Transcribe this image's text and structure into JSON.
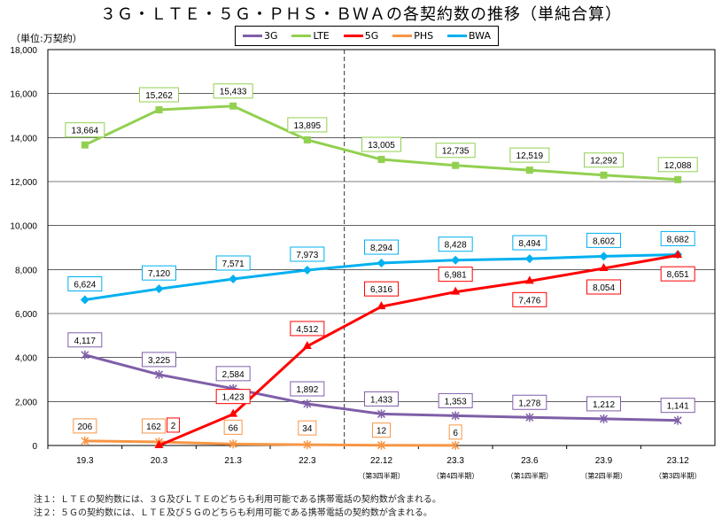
{
  "chart_data": {
    "type": "line",
    "title": "３Ｇ・ＬＴＥ・５Ｇ・ＰＨＳ・ＢＷＡの各契約数の推移（単純合算）",
    "unit_label": "（単位:万契約）",
    "categories": [
      "19.3",
      "20.3",
      "21.3",
      "22.3",
      "22.12",
      "23.3",
      "23.6",
      "23.9",
      "23.12"
    ],
    "sublabels": [
      "",
      "",
      "",
      "",
      "（第3四半期）",
      "（第4四半期）",
      "（第1四半期）",
      "（第2四半期）",
      "（第3四半期）"
    ],
    "ylim": [
      0,
      18000
    ],
    "yticks": [
      "0",
      "2,000",
      "4,000",
      "6,000",
      "8,000",
      "10,000",
      "12,000",
      "14,000",
      "16,000",
      "18,000"
    ],
    "series": [
      {
        "name": "3G",
        "color": "#7F5FA8",
        "values": [
          4117,
          3225,
          2584,
          1892,
          1433,
          1353,
          1278,
          1212,
          1141
        ],
        "labels": [
          "4,117",
          "3,225",
          "2,584",
          "1,892",
          "1,433",
          "1,353",
          "1,278",
          "1,212",
          "1,141"
        ]
      },
      {
        "name": "LTE",
        "color": "#92D050",
        "values": [
          13664,
          15262,
          15433,
          13895,
          13005,
          12735,
          12519,
          12292,
          12088
        ],
        "labels": [
          "13,664",
          "15,262",
          "15,433",
          "13,895",
          "13,005",
          "12,735",
          "12,519",
          "12,292",
          "12,088"
        ]
      },
      {
        "name": "5G",
        "color": "#FF0000",
        "values": [
          null,
          2,
          1423,
          4512,
          6316,
          6981,
          7476,
          8054,
          8651
        ],
        "labels": [
          null,
          "2",
          "1,423",
          "4,512",
          "6,316",
          "6,981",
          "7,476",
          "8,054",
          "8,651"
        ]
      },
      {
        "name": "PHS",
        "color": "#F79646",
        "values": [
          206,
          162,
          66,
          34,
          12,
          6,
          null,
          null,
          null
        ],
        "labels": [
          "206",
          "162",
          "66",
          "34",
          "12",
          "6",
          null,
          null,
          null
        ]
      },
      {
        "name": "BWA",
        "color": "#00B0F0",
        "values": [
          6624,
          7120,
          7571,
          7973,
          8294,
          8428,
          8494,
          8602,
          8682
        ],
        "labels": [
          "6,624",
          "7,120",
          "7,571",
          "7,973",
          "8,294",
          "8,428",
          "8,494",
          "8,602",
          "8,682"
        ]
      }
    ],
    "legend_position": "top-center",
    "grid": true
  },
  "notes": [
    "注１：ＬＴＥの契約数には、３Ｇ及びＬＴＥのどちらも利用可能である携帯電話の契約数が含まれる。",
    "注２：５Ｇの契約数には、ＬＴＥ及び５Ｇのどちらも利用可能である携帯電話の契約数が含まれる。"
  ]
}
